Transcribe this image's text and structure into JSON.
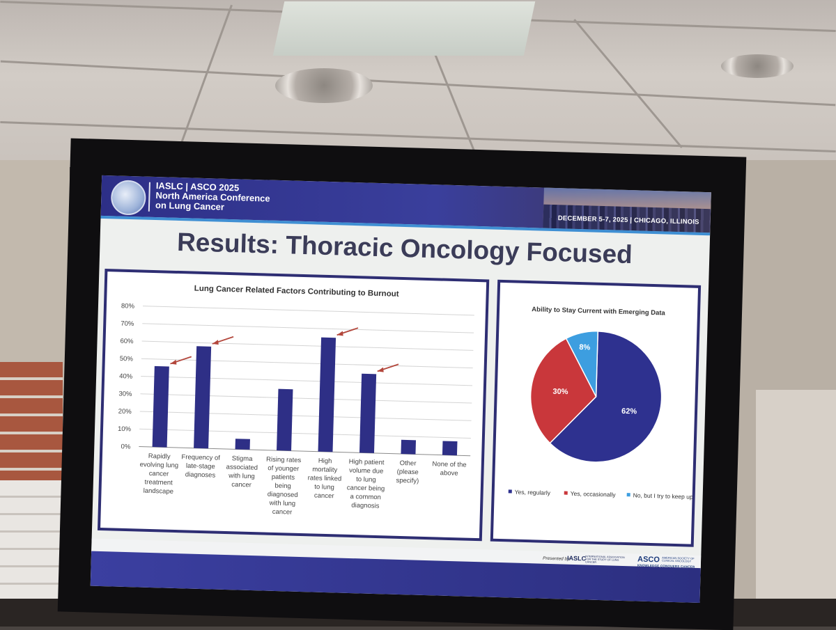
{
  "banner": {
    "conference_title": "IASLC | ASCO 2025\nNorth America Conference\non Lung Cancer",
    "dates_location": "DECEMBER 5-7, 2025 | CHICAGO, ILLINOIS"
  },
  "slide_title": "Results: Thoracic Oncology Focused",
  "footer": {
    "presented_by": "Presented by",
    "iaslc_logo": "IASLC",
    "iaslc_text": "INTERNATIONAL ASSOCIATION FOR THE STUDY OF LUNG CANCER",
    "asco_logo": "ASCO",
    "asco_text": "AMERICAN SOCIETY OF CLINICAL ONCOLOGY",
    "asco_tagline": "KNOWLEDGE CONQUERS CANCER"
  },
  "colors": {
    "bar": "#2e2f86",
    "arrow": "#b3473c",
    "pie_regularly": "#2e318f",
    "pie_occasionally": "#c9373b",
    "pie_no": "#3d9ee0"
  },
  "chart_data": [
    {
      "type": "bar",
      "title": "Lung Cancer Related Factors Contributing to Burnout",
      "categories": [
        "Rapidly evolving lung cancer treatment landscape",
        "Frequency of late-stage diagnoses",
        "Stigma associated with lung cancer",
        "Rising rates of younger patients being diagnosed with lung cancer",
        "High mortality rates linked to lung cancer",
        "High patient volume due to lung cancer being a common diagnosis",
        "Other (please specify)",
        "None of the above"
      ],
      "category_lines": [
        [
          "Rapidly",
          "evolving lung",
          "cancer",
          "treatment",
          "landscape"
        ],
        [
          "Frequency of",
          "late-stage",
          "diagnoses"
        ],
        [
          "Stigma",
          "associated",
          "with lung",
          "cancer"
        ],
        [
          "Rising rates",
          "of younger",
          "patients",
          "being",
          "diagnosed",
          "with lung",
          "cancer"
        ],
        [
          "High",
          "mortality",
          "rates linked",
          "to lung",
          "cancer"
        ],
        [
          "High patient",
          "volume due",
          "to lung",
          "cancer being",
          "a common",
          "diagnosis"
        ],
        [
          "Other",
          "(please",
          "specify)"
        ],
        [
          "None of the",
          "above"
        ]
      ],
      "values": [
        46,
        58,
        6,
        35,
        65,
        45,
        8,
        8
      ],
      "highlighted": [
        true,
        true,
        false,
        false,
        true,
        true,
        false,
        false
      ],
      "ylim": [
        0,
        80
      ],
      "yticks": [
        "0%",
        "10%",
        "20%",
        "30%",
        "40%",
        "50%",
        "60%",
        "70%",
        "80%"
      ],
      "grid": true
    },
    {
      "type": "pie",
      "title": "Ability to Stay Current with Emerging Data",
      "slices": [
        {
          "label": "Yes, regularly",
          "value": 62,
          "display": "62%"
        },
        {
          "label": "Yes, occasionally",
          "value": 30,
          "display": "30%"
        },
        {
          "label": "No, but I try to keep up.",
          "value": 8,
          "display": "8%"
        }
      ],
      "legend": "bottom"
    }
  ]
}
